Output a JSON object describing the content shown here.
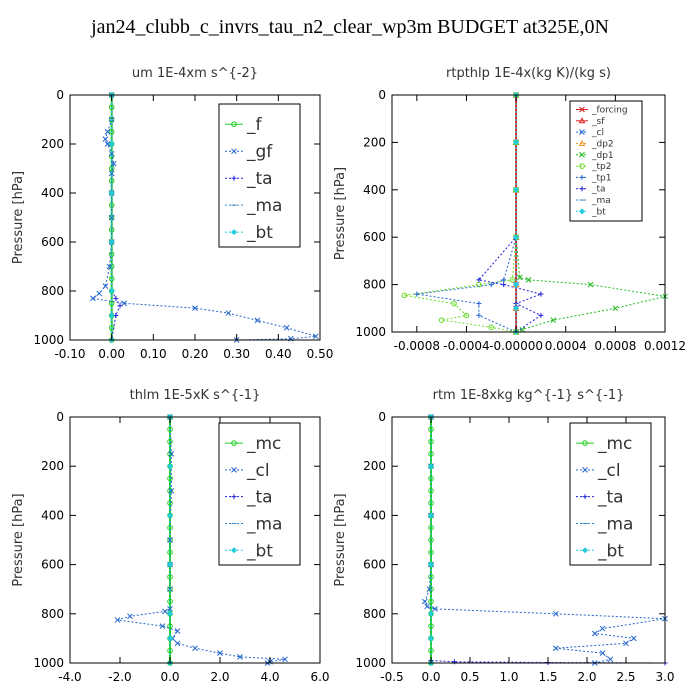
{
  "figure": {
    "title": "jan24_clubb_c_invrs_tau_n2_clear_wp3m  BUDGET at325E,0N"
  },
  "colors": {
    "mc": "#22cc22",
    "forcing": "#dd2222",
    "sf": "#dd2222",
    "cl": "#2266cc",
    "ta": "#2222dd",
    "ma": "#3388cc",
    "bt": "#22ccdd",
    "dp2": "#ee9922",
    "dp1": "#22bb22",
    "tp2": "#66dd22",
    "tp1": "#2266cc"
  },
  "chart_data": [
    {
      "type": "line",
      "title": "um   1E-4xm s^{-2}",
      "ylabel": "Pressure [hPa]",
      "xlabel": "",
      "xlim": [
        -0.1,
        0.5
      ],
      "ylim": [
        1000,
        0
      ],
      "y_reversed": true,
      "xticks": [
        -0.1,
        0.0,
        0.1,
        0.2,
        0.3,
        0.4,
        0.5
      ],
      "xtick_labels": [
        "-0.10",
        "0.00",
        "0.10",
        "0.20",
        "0.30",
        "0.40",
        "0.50"
      ],
      "yticks": [
        0,
        200,
        400,
        600,
        800,
        1000
      ],
      "legend": {
        "entries": [
          "_f",
          "_gf",
          "_ta",
          "_ma",
          "_bt"
        ],
        "placement": "top-right"
      },
      "series": [
        {
          "name": "_f",
          "color_key": "mc",
          "x": [
            0,
            0,
            0,
            0,
            0,
            0,
            0,
            0,
            0,
            0,
            0,
            0,
            0,
            0,
            0,
            0,
            0,
            0,
            0,
            0,
            0
          ],
          "y": [
            0,
            50,
            100,
            150,
            200,
            250,
            300,
            350,
            400,
            450,
            500,
            550,
            600,
            650,
            700,
            750,
            800,
            850,
            900,
            950,
            1000
          ]
        },
        {
          "name": "_gf",
          "color_key": "cl",
          "x": [
            0,
            0,
            -0.01,
            -0.015,
            -0.01,
            0,
            0.005,
            0,
            0,
            0,
            0,
            -0.005,
            -0.015,
            -0.03,
            -0.045,
            0.03,
            0.2,
            0.28,
            0.35,
            0.42,
            0.49,
            0.43,
            0.3
          ],
          "y": [
            0,
            100,
            150,
            180,
            200,
            240,
            280,
            320,
            400,
            500,
            600,
            700,
            780,
            810,
            830,
            850,
            870,
            890,
            920,
            950,
            985,
            995,
            1000
          ]
        },
        {
          "name": "_ta",
          "color_key": "ta",
          "x": [
            0,
            0,
            0,
            0,
            0,
            0.01,
            0.02,
            0.01,
            0
          ],
          "y": [
            0,
            200,
            400,
            600,
            800,
            830,
            860,
            900,
            1000
          ]
        },
        {
          "name": "_ma",
          "color_key": "ma",
          "x": [
            0,
            0,
            0,
            0,
            0,
            0,
            0
          ],
          "y": [
            0,
            200,
            400,
            600,
            800,
            900,
            1000
          ]
        },
        {
          "name": "_bt",
          "color_key": "bt",
          "x": [
            0,
            0,
            0,
            0,
            0,
            0,
            0
          ],
          "y": [
            0,
            200,
            400,
            600,
            800,
            900,
            1000
          ]
        }
      ]
    },
    {
      "type": "line",
      "title": "rtpthlp   1E-4x(kg K)/(kg s)",
      "ylabel": "Pressure [hPa]",
      "xlabel": "",
      "xlim": [
        -0.001,
        0.0012
      ],
      "ylim": [
        1000,
        0
      ],
      "y_reversed": true,
      "xticks": [
        -0.0008,
        -0.0004,
        0.0,
        0.0004,
        0.0008,
        0.0012
      ],
      "xtick_labels": [
        "-0.0008",
        "-0.0004",
        "-0.00000",
        "0.0004",
        "0.0008",
        "0.0012"
      ],
      "yticks": [
        0,
        200,
        400,
        600,
        800,
        1000
      ],
      "legend": {
        "entries": [
          "_forcing",
          "_sf",
          "_cl",
          "_dp2",
          "_dp1",
          "_tp2",
          "_tp1",
          "_ta",
          "_ma",
          "_bt"
        ],
        "placement": "top-right"
      },
      "series": [
        {
          "name": "_forcing",
          "color_key": "forcing",
          "x": [
            0,
            0,
            0,
            0,
            0,
            0,
            0
          ],
          "y": [
            0,
            200,
            400,
            600,
            800,
            900,
            1000
          ]
        },
        {
          "name": "_sf",
          "color_key": "sf",
          "x": [
            0,
            0,
            0,
            0,
            0,
            0,
            0
          ],
          "y": [
            0,
            200,
            400,
            600,
            800,
            900,
            1000
          ]
        },
        {
          "name": "_cl",
          "color_key": "cl",
          "x": [
            0,
            0,
            0,
            0,
            0,
            0,
            0
          ],
          "y": [
            0,
            200,
            400,
            600,
            800,
            900,
            1000
          ]
        },
        {
          "name": "_dp2",
          "color_key": "dp2",
          "x": [
            0,
            0,
            0,
            0,
            0,
            0,
            0
          ],
          "y": [
            0,
            200,
            400,
            600,
            800,
            900,
            1000
          ]
        },
        {
          "name": "_dp1",
          "color_key": "dp1",
          "x": [
            0,
            0,
            0,
            0,
            3e-05,
            0.0001,
            0.0006,
            0.0012,
            0.0008,
            0.0003,
            5e-05,
            0
          ],
          "y": [
            0,
            200,
            400,
            600,
            770,
            780,
            800,
            850,
            900,
            950,
            990,
            1000
          ]
        },
        {
          "name": "_tp2",
          "color_key": "tp2",
          "x": [
            0,
            0,
            0,
            0,
            -3e-05,
            -0.0003,
            -0.0009,
            -0.0005,
            -0.0004,
            -0.0006,
            -0.0002,
            0
          ],
          "y": [
            0,
            200,
            400,
            600,
            780,
            800,
            845,
            880,
            930,
            950,
            980,
            1000
          ]
        },
        {
          "name": "_tp1",
          "color_key": "tp1",
          "x": [
            0,
            0,
            0,
            0,
            -0.0001,
            -0.0002,
            -0.0008,
            -0.0003,
            -0.0003,
            0
          ],
          "y": [
            0,
            200,
            400,
            600,
            780,
            800,
            840,
            880,
            930,
            1000
          ]
        },
        {
          "name": "_ta",
          "color_key": "ta",
          "x": [
            0,
            0,
            0,
            0,
            -0.0003,
            -0.0001,
            0.0002,
            0,
            0.0002,
            0
          ],
          "y": [
            0,
            200,
            400,
            600,
            780,
            800,
            840,
            880,
            930,
            1000
          ]
        },
        {
          "name": "_ma",
          "color_key": "ma",
          "x": [
            0,
            0,
            0,
            0,
            0,
            0,
            0
          ],
          "y": [
            0,
            200,
            400,
            600,
            800,
            900,
            1000
          ]
        },
        {
          "name": "_bt",
          "color_key": "bt",
          "x": [
            0,
            0,
            0,
            0,
            0,
            0,
            0
          ],
          "y": [
            0,
            200,
            400,
            600,
            800,
            900,
            1000
          ]
        }
      ]
    },
    {
      "type": "line",
      "title": "thlm   1E-5xK s^{-1}",
      "ylabel": "Pressure [hPa]",
      "xlabel": "",
      "xlim": [
        -4.0,
        6.0
      ],
      "ylim": [
        1000,
        0
      ],
      "y_reversed": true,
      "xticks": [
        -4.0,
        -2.0,
        0.0,
        2.0,
        4.0,
        6.0
      ],
      "xtick_labels": [
        "-4.0",
        "-2.0",
        "0.0",
        "2.0",
        "4.0",
        "6.0"
      ],
      "yticks": [
        0,
        200,
        400,
        600,
        800,
        1000
      ],
      "legend": {
        "entries": [
          "_mc",
          "_cl",
          "_ta",
          "_ma",
          "_bt"
        ],
        "placement": "top-right"
      },
      "series": [
        {
          "name": "_mc",
          "color_key": "mc",
          "x": [
            0,
            0,
            0,
            0,
            0,
            0,
            0,
            0,
            0,
            0,
            0,
            0,
            0,
            0,
            0,
            0,
            0,
            0,
            0,
            0,
            0
          ],
          "y": [
            0,
            50,
            100,
            150,
            200,
            250,
            300,
            350,
            400,
            450,
            500,
            550,
            600,
            650,
            700,
            750,
            800,
            850,
            900,
            950,
            1000
          ]
        },
        {
          "name": "_cl",
          "color_key": "cl",
          "x": [
            0,
            0.05,
            0.05,
            0,
            0,
            0,
            0,
            -0.2,
            -1.6,
            -2.1,
            -0.3,
            0.3,
            0.1,
            0.3,
            1.0,
            2.0,
            2.8,
            4.6,
            4.0,
            3.9
          ],
          "y": [
            0,
            150,
            300,
            500,
            600,
            700,
            780,
            790,
            810,
            825,
            850,
            870,
            900,
            920,
            940,
            960,
            975,
            985,
            995,
            1000
          ]
        },
        {
          "name": "_ta",
          "color_key": "ta",
          "x": [
            0,
            0,
            0,
            0,
            0,
            0,
            0
          ],
          "y": [
            0,
            200,
            400,
            600,
            800,
            900,
            1000
          ]
        },
        {
          "name": "_ma",
          "color_key": "ma",
          "x": [
            0,
            0,
            0,
            0,
            0,
            0,
            0
          ],
          "y": [
            0,
            200,
            400,
            600,
            800,
            900,
            1000
          ]
        },
        {
          "name": "_bt",
          "color_key": "bt",
          "x": [
            0,
            0,
            0,
            0,
            0,
            0,
            0
          ],
          "y": [
            0,
            200,
            400,
            600,
            800,
            900,
            1000
          ]
        }
      ]
    },
    {
      "type": "line",
      "title": "rtm   1E-8xkg kg^{-1} s^{-1}",
      "ylabel": "Pressure [hPa]",
      "xlabel": "",
      "xlim": [
        -0.5,
        3.0
      ],
      "ylim": [
        1000,
        0
      ],
      "y_reversed": true,
      "xticks": [
        -0.5,
        0.0,
        0.5,
        1.0,
        1.5,
        2.0,
        2.5,
        3.0
      ],
      "xtick_labels": [
        "-0.5",
        "0.0",
        "0.5",
        "1.0",
        "1.5",
        "2.0",
        "2.5",
        "3.0"
      ],
      "yticks": [
        0,
        200,
        400,
        600,
        800,
        1000
      ],
      "legend": {
        "entries": [
          "_mc",
          "_cl",
          "_ta",
          "_ma",
          "_bt"
        ],
        "placement": "top-right"
      },
      "series": [
        {
          "name": "_mc",
          "color_key": "mc",
          "x": [
            0,
            0,
            0,
            0,
            0,
            0,
            0,
            0,
            0,
            0,
            0,
            0,
            0,
            0,
            0,
            0,
            0,
            0,
            0,
            0,
            0
          ],
          "y": [
            0,
            50,
            100,
            150,
            200,
            250,
            300,
            350,
            400,
            450,
            500,
            550,
            600,
            650,
            700,
            750,
            800,
            850,
            900,
            950,
            1000
          ]
        },
        {
          "name": "_cl",
          "color_key": "cl",
          "x": [
            0,
            0,
            0,
            0,
            -0.02,
            -0.08,
            -0.05,
            0.05,
            1.6,
            3.0,
            2.2,
            2.1,
            2.6,
            2.5,
            1.6,
            2.2,
            2.3,
            2.1
          ],
          "y": [
            0,
            200,
            400,
            600,
            700,
            750,
            770,
            780,
            800,
            820,
            860,
            880,
            900,
            920,
            940,
            960,
            985,
            1000
          ]
        },
        {
          "name": "_ta",
          "color_key": "ta",
          "x": [
            0,
            0,
            0,
            0,
            0,
            0,
            0.3,
            1.5,
            3.0
          ],
          "y": [
            0,
            200,
            400,
            600,
            800,
            990,
            995,
            998,
            1000
          ]
        },
        {
          "name": "_ma",
          "color_key": "ma",
          "x": [
            0,
            0,
            0,
            0,
            0,
            0,
            0
          ],
          "y": [
            0,
            200,
            400,
            600,
            800,
            900,
            1000
          ]
        },
        {
          "name": "_bt",
          "color_key": "bt",
          "x": [
            0,
            0,
            0,
            0,
            0,
            0,
            0
          ],
          "y": [
            0,
            200,
            400,
            600,
            800,
            900,
            1000
          ]
        }
      ]
    }
  ]
}
